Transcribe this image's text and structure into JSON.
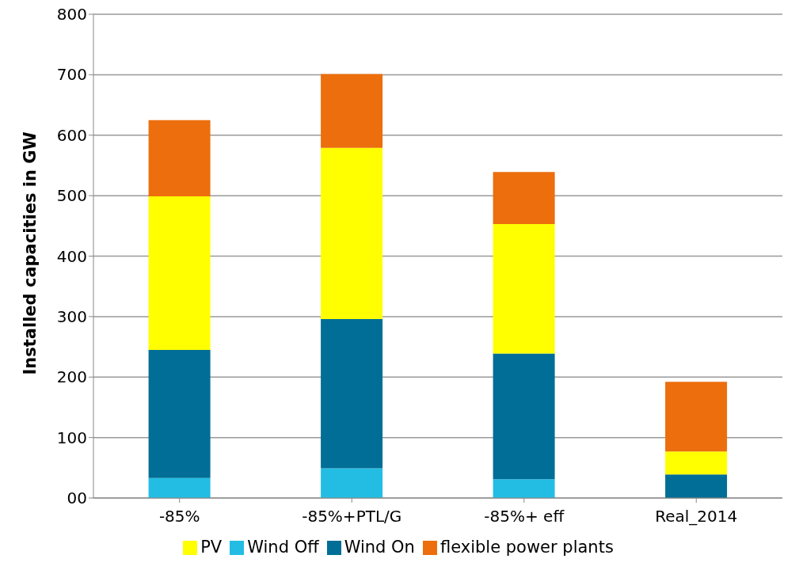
{
  "chart_data": {
    "type": "bar",
    "stacked": true,
    "ylabel": "Installed capacities in GW",
    "categories": [
      "-85%",
      "-85%+PTL/G",
      "-85%+ eff",
      "Real_2014"
    ],
    "series": [
      {
        "name": "Wind Off",
        "color": "#23bde4",
        "values": [
          33,
          49,
          31,
          0
        ]
      },
      {
        "name": "Wind On",
        "color": "#006e96",
        "values": [
          212,
          247,
          208,
          39
        ]
      },
      {
        "name": "PV",
        "color": "#ffff00",
        "values": [
          254,
          283,
          214,
          38
        ]
      },
      {
        "name": "flexible power plants",
        "color": "#ec6e0c",
        "values": [
          126,
          122,
          86,
          115
        ]
      }
    ],
    "ylim": [
      0,
      800
    ],
    "yticks": [
      {
        "value": 0,
        "label": "00"
      },
      100,
      200,
      300,
      400,
      500,
      600,
      700,
      800
    ],
    "grid": "y",
    "legend": "bottom"
  }
}
